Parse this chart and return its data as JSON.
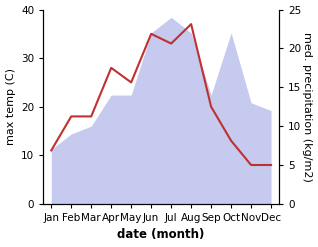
{
  "months": [
    "Jan",
    "Feb",
    "Mar",
    "Apr",
    "May",
    "Jun",
    "Jul",
    "Aug",
    "Sep",
    "Oct",
    "Nov",
    "Dec"
  ],
  "month_positions": [
    0,
    1,
    2,
    3,
    4,
    5,
    6,
    7,
    8,
    9,
    10,
    11
  ],
  "max_temp": [
    11,
    18,
    18,
    28,
    25,
    35,
    33,
    37,
    20,
    13,
    8,
    8
  ],
  "precipitation": [
    7,
    9,
    10,
    14,
    14,
    22,
    24,
    22,
    14,
    22,
    13,
    12
  ],
  "temp_color": "#c03030",
  "precip_fill_color": "#c5caee",
  "ylim_left": [
    0,
    40
  ],
  "ylim_right": [
    0,
    25
  ],
  "xlabel": "date (month)",
  "ylabel_left": "max temp (C)",
  "ylabel_right": "med. precipitation (kg/m2)",
  "bg_color": "#ffffff",
  "label_fontsize": 8,
  "tick_fontsize": 7.5
}
